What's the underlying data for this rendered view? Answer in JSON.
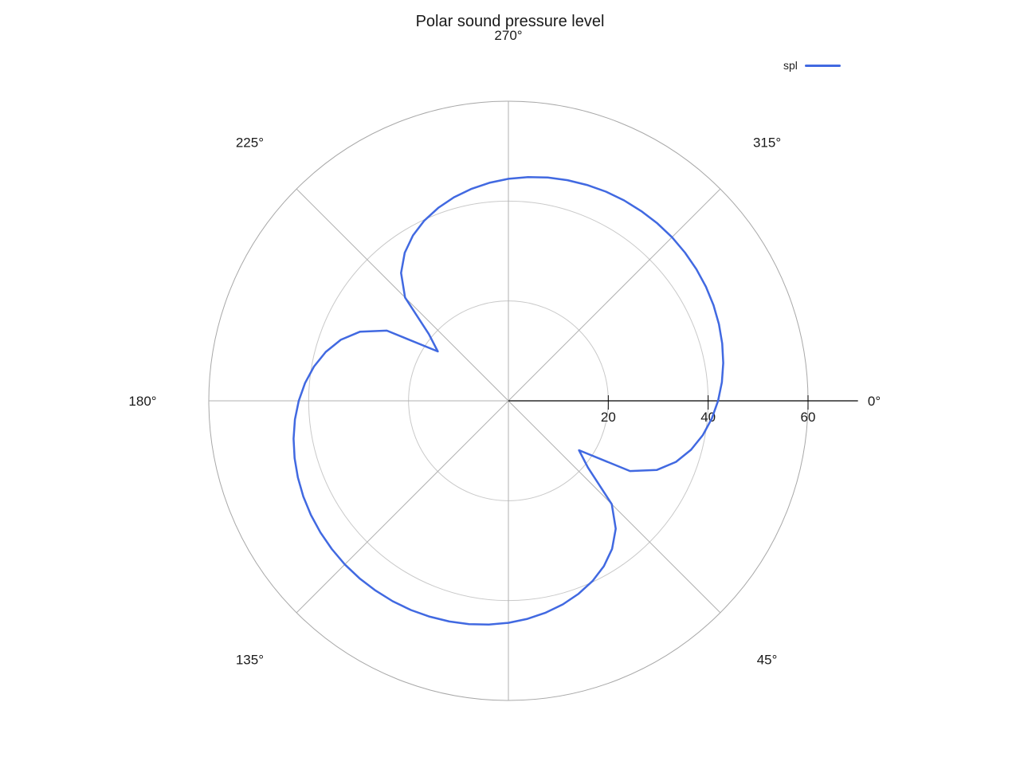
{
  "title": "Polar sound pressure level",
  "legend": {
    "label": "spl",
    "position": "top-right"
  },
  "colors": {
    "line": "#4169e1",
    "outer_circle": "#a8a8a8",
    "inner_circle": "#c9c9c9",
    "spoke": "#b0b0b0",
    "axis": "#000000",
    "text": "#1a1a1a",
    "background": "#ffffff"
  },
  "chart_data": {
    "type": "line",
    "subtype": "polar",
    "title": "Polar sound pressure level",
    "legend_position": "top-right",
    "grid": true,
    "radial_axis": {
      "ticks": [
        20,
        40,
        60
      ],
      "max": 60,
      "axis_line_extent": 70
    },
    "angle_axis": {
      "direction": "clockwise",
      "zero_position": "right",
      "spoke_angles_deg": [
        45,
        90,
        135,
        180,
        225,
        270,
        315
      ],
      "labels": [
        {
          "angle_deg": 0,
          "label": "0°"
        },
        {
          "angle_deg": 45,
          "label": "45°"
        },
        {
          "angle_deg": 135,
          "label": "135°"
        },
        {
          "angle_deg": 180,
          "label": "180°"
        },
        {
          "angle_deg": 225,
          "label": "225°"
        },
        {
          "angle_deg": 270,
          "label": "270°"
        },
        {
          "angle_deg": 315,
          "label": "315°"
        }
      ]
    },
    "series": [
      {
        "name": "spl",
        "angles_deg": [
          0,
          5,
          10,
          15,
          20,
          25,
          30,
          35,
          40,
          45,
          50,
          55,
          60,
          65,
          70,
          75,
          80,
          85,
          90,
          95,
          100,
          105,
          110,
          115,
          120,
          125,
          130,
          135,
          140,
          145,
          150,
          155,
          160,
          165,
          170,
          175,
          180,
          185,
          190,
          195,
          200,
          205,
          210,
          215,
          220,
          225,
          230,
          235,
          240,
          245,
          250,
          255,
          260,
          265,
          270,
          275,
          280,
          285,
          290,
          295,
          300,
          305,
          310,
          315,
          320,
          325,
          330,
          335,
          340,
          345,
          350,
          355
        ],
        "values": [
          41.99,
          40.88,
          39.54,
          37.87,
          35.72,
          32.76,
          28.12,
          17.26,
          20.78,
          29.27,
          33.44,
          36.2,
          38.24,
          39.83,
          41.12,
          42.19,
          43.07,
          43.82,
          44.45,
          44.97,
          45.4,
          45.74,
          46.01,
          46.21,
          46.34,
          46.39,
          46.39,
          46.32,
          46.17,
          45.96,
          45.68,
          45.32,
          44.87,
          44.33,
          43.68,
          42.91,
          41.99,
          40.88,
          39.54,
          37.87,
          35.72,
          32.76,
          28.12,
          17.26,
          20.78,
          29.27,
          33.44,
          36.2,
          38.24,
          39.83,
          41.12,
          42.19,
          43.07,
          43.82,
          44.45,
          44.97,
          45.4,
          45.74,
          46.01,
          46.21,
          46.34,
          46.39,
          46.39,
          46.32,
          46.17,
          45.96,
          45.68,
          45.32,
          44.87,
          44.33,
          43.68,
          42.91
        ]
      }
    ]
  }
}
